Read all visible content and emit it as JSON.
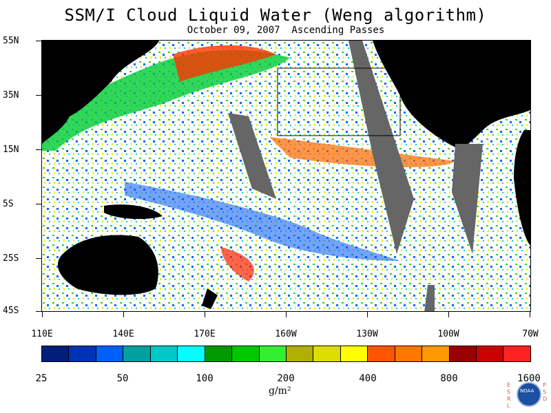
{
  "header": {
    "title": "SSM/I Cloud Liquid Water (Weng algorithm)",
    "subtitle": "October 09, 2007  Ascending Passes"
  },
  "latitude_labels": [
    "55N",
    "35N",
    "15N",
    "5S",
    "25S",
    "45S"
  ],
  "longitude_labels": [
    "110E",
    "140E",
    "170E",
    "160W",
    "130W",
    "100W",
    "70W"
  ],
  "colorbar": {
    "colors": [
      "#001f7a",
      "#0033b3",
      "#0060ff",
      "#00a0a0",
      "#00c8c8",
      "#00ffff",
      "#009900",
      "#00c800",
      "#33ee33",
      "#b0b000",
      "#dddd00",
      "#ffff00",
      "#ff5500",
      "#ff7700",
      "#ff9900",
      "#990000",
      "#cc0000",
      "#ff2222"
    ],
    "labels": [
      "25",
      "50",
      "100",
      "200",
      "400",
      "800",
      "1600"
    ],
    "units": "g/m²"
  },
  "logo": {
    "left_letters": "ESRL",
    "right_letters": "PSD",
    "center_text": "NOAA"
  }
}
